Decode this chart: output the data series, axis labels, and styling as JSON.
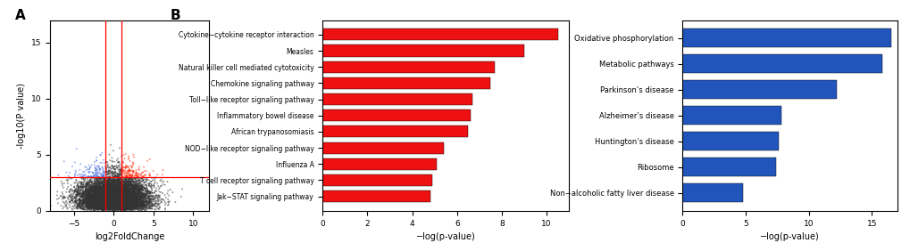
{
  "volcano": {
    "xlim": [
      -8,
      12
    ],
    "ylim": [
      0,
      17
    ],
    "xlabel": "log2FoldChange",
    "ylabel": "-log10(P value)",
    "vline1": -1,
    "vline2": 1,
    "hline": 3,
    "panel_label": "A",
    "dot_size": 2,
    "dot_alpha": 0.5,
    "colors": {
      "red": "#FF2200",
      "blue": "#4169E1",
      "black": "#333333"
    }
  },
  "red_bars": {
    "panel_label": "B",
    "categories": [
      "Cytokine−cytokine receptor interaction",
      "Measles",
      "Natural killer cell mediated cytotoxicity",
      "Chemokine signaling pathway",
      "Toll−like receptor signaling pathway",
      "Inflammatory bowel disease",
      "African trypanosomiasis",
      "NOD−like receptor signaling pathway",
      "Influenza A",
      "T cell receptor signaling pathway",
      "Jak−STAT signaling pathway"
    ],
    "values": [
      10.5,
      9.0,
      7.7,
      7.5,
      6.7,
      6.6,
      6.5,
      5.4,
      5.1,
      4.9,
      4.8
    ],
    "color": "#EE1111",
    "xlabel": "−log(p-value)",
    "xlim": [
      0,
      11
    ],
    "xticks": [
      0,
      2,
      4,
      6,
      8,
      10
    ]
  },
  "blue_bars": {
    "categories": [
      "Oxidative phosphorylation",
      "Metabolic pathways",
      "Parkinson’s disease",
      "Alzheimer’s disease",
      "Huntington’s disease",
      "Ribosome",
      "Non−alcoholic fatty liver disease"
    ],
    "values": [
      16.5,
      15.8,
      12.2,
      7.8,
      7.6,
      7.4,
      4.8
    ],
    "color": "#2255BB",
    "xlabel": "−log(p-value)",
    "xlim": [
      0,
      17
    ],
    "xticks": [
      0,
      5,
      10,
      15
    ]
  }
}
